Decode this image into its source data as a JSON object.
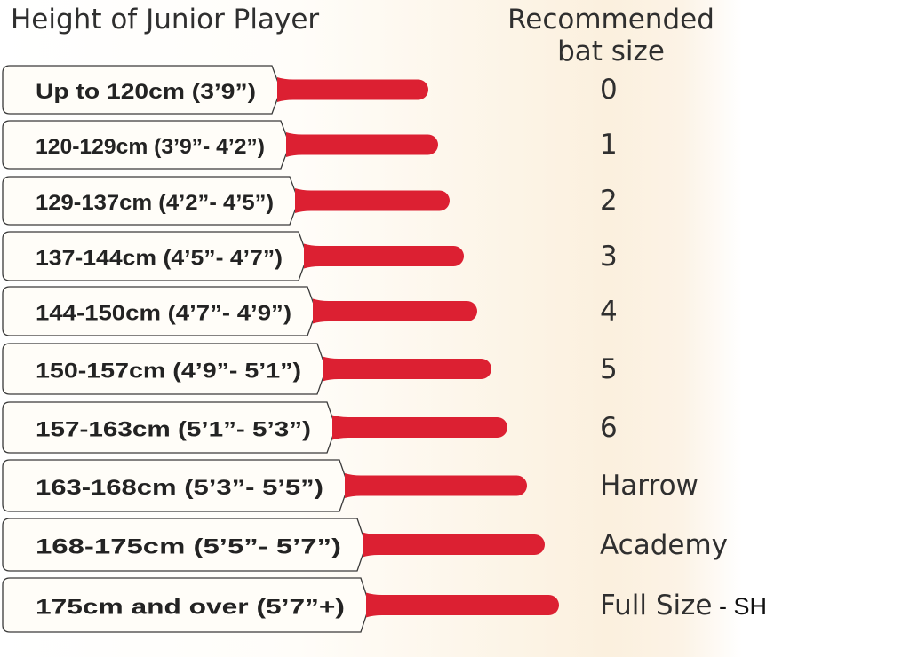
{
  "header": {
    "left_title": "Height of Junior Player",
    "right_title_line1": "Recommended",
    "right_title_line2": "bat size"
  },
  "colors": {
    "handle": "#dc2032",
    "blade_border": "#3a3a3a",
    "blade_fill": "#fffdf8"
  },
  "rows": [
    {
      "height": "Up to 120cm (3’9”)",
      "size": "0",
      "suffix": ""
    },
    {
      "height": "120-129cm (3’9”- 4’2”)",
      "size": "1",
      "suffix": ""
    },
    {
      "height": "129-137cm (4’2”- 4’5”)",
      "size": "2",
      "suffix": ""
    },
    {
      "height": "137-144cm (4’5”- 4’7”)",
      "size": "3",
      "suffix": ""
    },
    {
      "height": "144-150cm (4’7”- 4’9”)",
      "size": "4",
      "suffix": ""
    },
    {
      "height": "150-157cm (4’9”- 5’1”)",
      "size": "5",
      "suffix": ""
    },
    {
      "height": "157-163cm (5’1”- 5’3”)",
      "size": "6",
      "suffix": ""
    },
    {
      "height": "163-168cm (5’3”- 5’5”)",
      "size": "Harrow",
      "suffix": ""
    },
    {
      "height": "168-175cm (5’5”- 5’7”)",
      "size": "Academy",
      "suffix": ""
    },
    {
      "height": "175cm and over (5’7”+)",
      "size": "Full Size",
      "suffix": " - SH"
    }
  ]
}
